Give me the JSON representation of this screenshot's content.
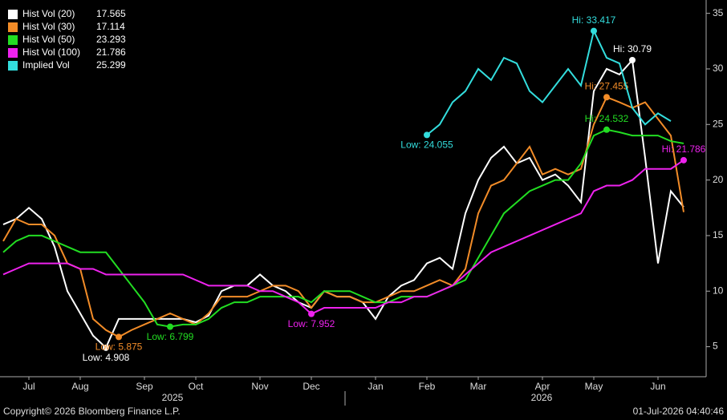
{
  "chart_data": {
    "type": "line",
    "categories": [
      null,
      null,
      "Jul",
      null,
      null,
      null,
      "Aug",
      null,
      null,
      null,
      null,
      "Sep",
      null,
      null,
      null,
      "Oct",
      null,
      null,
      null,
      null,
      "Nov",
      null,
      null,
      null,
      "Dec",
      null,
      null,
      null,
      null,
      "Jan",
      null,
      null,
      null,
      "Feb",
      null,
      null,
      null,
      "Mar",
      null,
      null,
      null,
      null,
      "Apr",
      null,
      null,
      null,
      "May",
      null,
      null,
      null,
      null,
      "Jun",
      null,
      null
    ],
    "x_group_labels": [
      "2025",
      "2026"
    ],
    "ylim": [
      2.3,
      36.2
    ],
    "yticks": [
      5,
      10,
      15,
      20,
      25,
      30,
      35
    ],
    "grid": false,
    "legend": "top-left",
    "series": [
      {
        "name": "Hist Vol (20)",
        "color": "#ffffff",
        "high_label": "Hi: 30.79",
        "low_label": "Low: 4.908",
        "values": [
          16.0,
          16.5,
          17.5,
          16.5,
          14,
          10,
          8,
          6,
          4.908,
          7.5,
          7.5,
          7.5,
          7.5,
          7.5,
          7.5,
          7.2,
          7.8,
          10,
          10.5,
          10.5,
          11.5,
          10.5,
          10,
          9,
          8.5,
          10,
          9.5,
          9.5,
          9,
          7.5,
          9.5,
          10.5,
          11,
          12.5,
          13,
          12,
          17,
          20,
          22,
          23,
          21.5,
          22,
          20,
          20.5,
          19.5,
          18,
          28,
          30,
          29.5,
          30.79,
          22,
          12.5,
          19,
          17.565
        ]
      },
      {
        "name": "Hist Vol (30)",
        "color": "#f28c28",
        "high_label": "Hi: 27.455",
        "low_label": "Low: 5.875",
        "values": [
          14.5,
          16.5,
          16,
          16,
          15,
          12.5,
          12,
          7.5,
          6.5,
          5.875,
          6.5,
          7,
          7.5,
          8,
          7.5,
          7,
          8,
          9.5,
          9.5,
          9.5,
          10,
          10.5,
          10.5,
          10,
          8.5,
          10,
          9.5,
          9.5,
          9,
          9,
          9.5,
          10,
          10,
          10.5,
          11,
          10.5,
          12,
          17,
          19.5,
          20,
          21.5,
          23,
          20.5,
          21,
          20.5,
          21,
          25,
          27.455,
          27,
          26.5,
          27,
          25.5,
          24,
          17.114
        ]
      },
      {
        "name": "Hist Vol (50)",
        "color": "#22dd22",
        "high_label": "Hi: 24.532",
        "low_label": "Low: 6.799",
        "values": [
          13.5,
          14.5,
          15,
          15,
          14.5,
          14,
          13.5,
          13.5,
          13.5,
          12,
          10.5,
          9,
          7,
          6.799,
          7,
          7,
          7.5,
          8.5,
          9,
          9,
          9.5,
          9.5,
          9.5,
          9.5,
          9,
          10,
          10,
          10,
          9.5,
          9,
          9,
          9.5,
          9.5,
          9.5,
          10,
          10.5,
          11,
          13,
          15,
          17,
          18,
          19,
          19.5,
          20,
          20,
          21.5,
          24,
          24.532,
          24.3,
          24,
          24,
          24,
          23.5,
          23.293
        ]
      },
      {
        "name": "Hist Vol (100)",
        "color": "#ee22ee",
        "high_label": "Hi: 21.786",
        "low_label": "Low: 7.952",
        "values": [
          11.5,
          12,
          12.5,
          12.5,
          12.5,
          12.5,
          12,
          12,
          11.5,
          11.5,
          11.5,
          11.5,
          11.5,
          11.5,
          11.5,
          11,
          10.5,
          10.5,
          10.5,
          10.5,
          10,
          10,
          9.5,
          9,
          7.952,
          8.5,
          8.5,
          8.5,
          8.5,
          8.5,
          9,
          9,
          9.5,
          9.5,
          10,
          10.5,
          11.5,
          12.5,
          13.5,
          14,
          14.5,
          15,
          15.5,
          16,
          16.5,
          17,
          19,
          19.5,
          19.5,
          20,
          21,
          21,
          21,
          21.786
        ]
      },
      {
        "name": "Implied Vol",
        "color": "#33dddd",
        "high_label": "Hi: 33.417",
        "low_label": "Low: 24.055",
        "values": [
          null,
          null,
          null,
          null,
          null,
          null,
          null,
          null,
          null,
          null,
          null,
          null,
          null,
          null,
          null,
          null,
          null,
          null,
          null,
          null,
          null,
          null,
          null,
          null,
          null,
          null,
          null,
          null,
          null,
          null,
          null,
          null,
          null,
          24.055,
          25,
          27,
          28,
          30,
          29,
          31,
          30.5,
          28,
          27,
          28.5,
          30,
          28.5,
          33.417,
          31,
          30.5,
          26.5,
          25,
          26,
          25.299,
          null
        ]
      }
    ],
    "footer_left": "Copyright© 2026 Bloomberg Finance L.P.",
    "footer_right": "01-Jul-2026 04:40:46"
  }
}
